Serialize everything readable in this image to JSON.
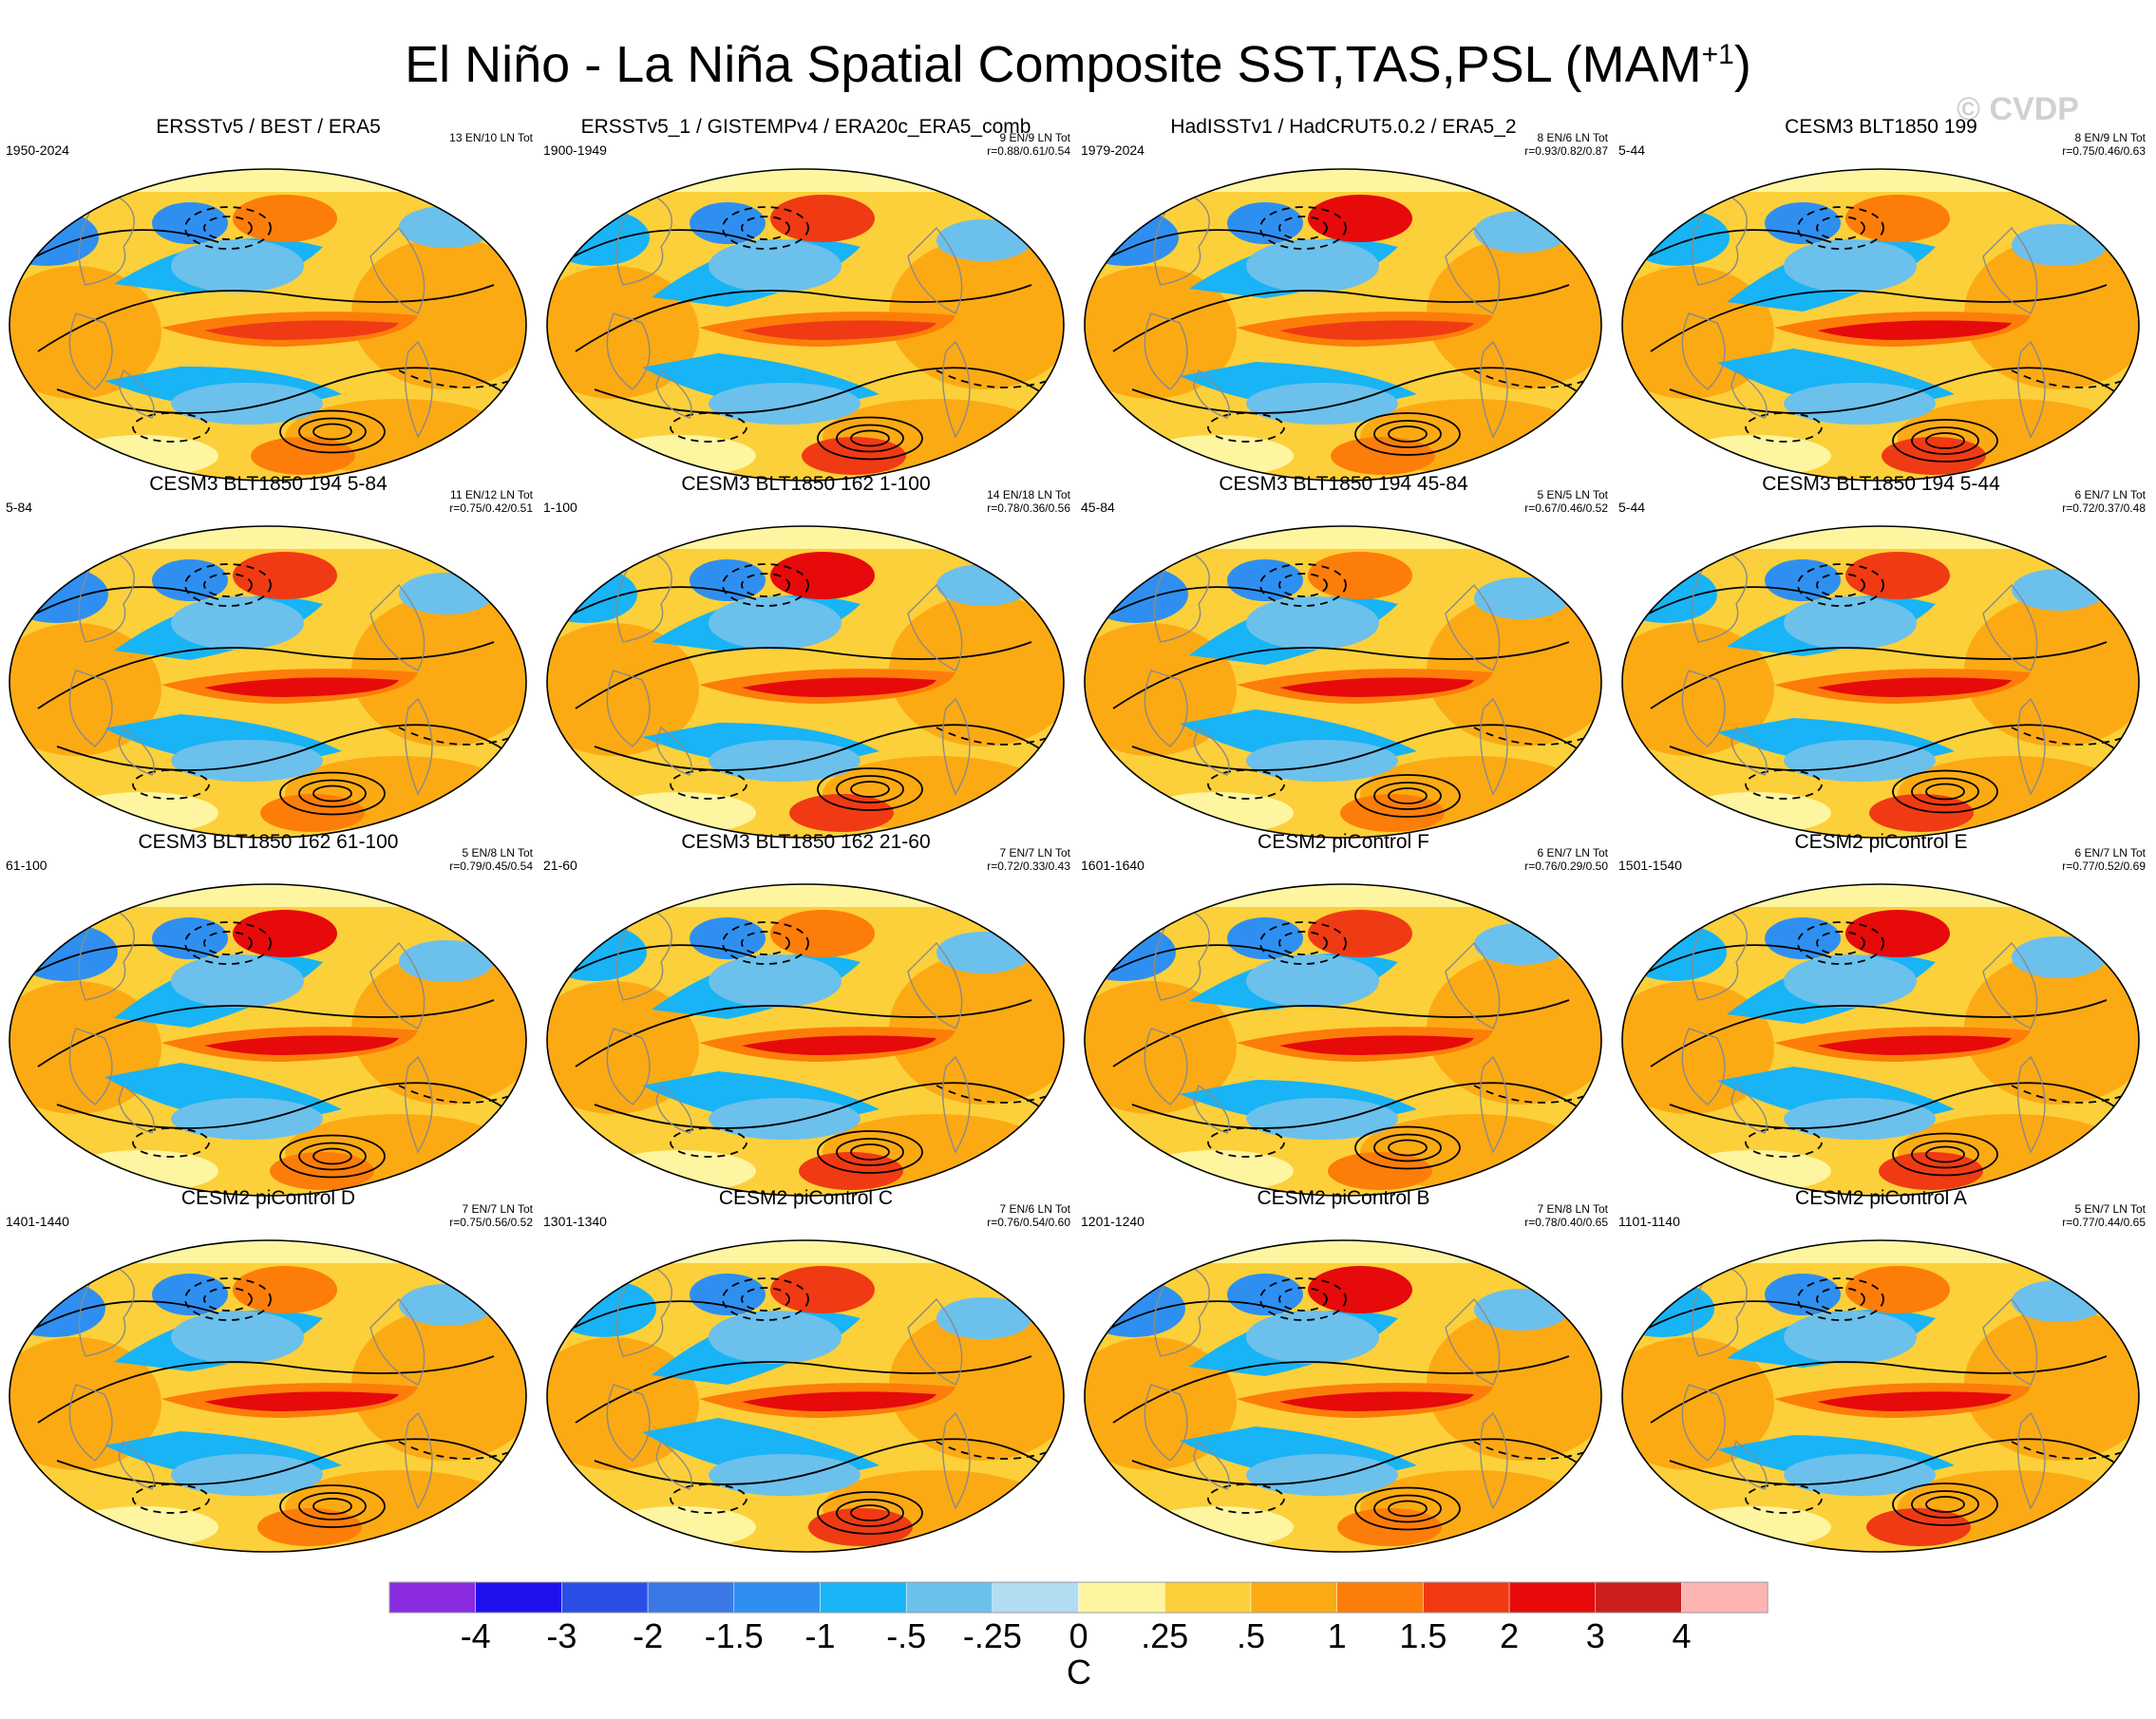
{
  "figure": {
    "title_main": "El Niño - La Niña Spatial Composite SST,TAS,PSL (MAM",
    "title_sup": "+1",
    "title_end": ")",
    "watermark": "© CVDP",
    "colors": {
      "land_ocean_warm": "#fcd74a",
      "polar": "#fdf5a0"
    }
  },
  "panels": [
    {
      "title": "ERSSTv5 / BEST / ERA5",
      "years": "1950-2024",
      "stats_line1": "13 EN/10 LN Tot",
      "stats_line2": ""
    },
    {
      "title": "ERSSTv5_1 / GISTEMPv4 / ERA20c_ERA5_comb",
      "years": "1900-1949",
      "stats_line1": "9 EN/9 LN Tot",
      "stats_line2": "r=0.88/0.61/0.54"
    },
    {
      "title": "HadISSTv1 / HadCRUT5.0.2 / ERA5_2",
      "years": "1979-2024",
      "stats_line1": "8 EN/6 LN Tot",
      "stats_line2": "r=0.93/0.82/0.87"
    },
    {
      "title": "CESM3 BLT1850 199",
      "years": "5-44",
      "stats_line1": "8 EN/9 LN Tot",
      "stats_line2": "r=0.75/0.46/0.63"
    },
    {
      "title": "CESM3 BLT1850 194 5-84",
      "years": "5-84",
      "stats_line1": "11 EN/12 LN Tot",
      "stats_line2": "r=0.75/0.42/0.51"
    },
    {
      "title": "CESM3 BLT1850 162 1-100",
      "years": "1-100",
      "stats_line1": "14 EN/18 LN Tot",
      "stats_line2": "r=0.78/0.36/0.56"
    },
    {
      "title": "CESM3 BLT1850 194 45-84",
      "years": "45-84",
      "stats_line1": "5 EN/5 LN Tot",
      "stats_line2": "r=0.67/0.46/0.52"
    },
    {
      "title": "CESM3 BLT1850 194 5-44",
      "years": "5-44",
      "stats_line1": "6 EN/7 LN Tot",
      "stats_line2": "r=0.72/0.37/0.48"
    },
    {
      "title": "CESM3 BLT1850 162 61-100",
      "years": "61-100",
      "stats_line1": "5 EN/8 LN Tot",
      "stats_line2": "r=0.79/0.45/0.54"
    },
    {
      "title": "CESM3 BLT1850 162 21-60",
      "years": "21-60",
      "stats_line1": "7 EN/7 LN Tot",
      "stats_line2": "r=0.72/0.33/0.43"
    },
    {
      "title": "CESM2 piControl F",
      "years": "1601-1640",
      "stats_line1": "6 EN/7 LN Tot",
      "stats_line2": "r=0.76/0.29/0.50"
    },
    {
      "title": "CESM2 piControl E",
      "years": "1501-1540",
      "stats_line1": "6 EN/7 LN Tot",
      "stats_line2": "r=0.77/0.52/0.69"
    },
    {
      "title": "CESM2 piControl D",
      "years": "1401-1440",
      "stats_line1": "7 EN/7 LN Tot",
      "stats_line2": "r=0.75/0.56/0.52"
    },
    {
      "title": "CESM2 piControl C",
      "years": "1301-1340",
      "stats_line1": "7 EN/6 LN Tot",
      "stats_line2": "r=0.76/0.54/0.60"
    },
    {
      "title": "CESM2 piControl B",
      "years": "1201-1240",
      "stats_line1": "7 EN/8 LN Tot",
      "stats_line2": "r=0.78/0.40/0.65"
    },
    {
      "title": "CESM2 piControl A",
      "years": "1101-1140",
      "stats_line1": "5 EN/7 LN Tot",
      "stats_line2": "r=0.77/0.44/0.65"
    }
  ],
  "colorbar": {
    "labels": [
      "-4",
      "-3",
      "-2",
      "-1.5",
      "-1",
      "-.5",
      "-.25",
      "0",
      ".25",
      ".5",
      "1",
      "1.5",
      "2",
      "3",
      "4"
    ],
    "colors": [
      "#8a2be2",
      "#1f10f0",
      "#2a4de6",
      "#3a78e6",
      "#2f8ff0",
      "#18b4f5",
      "#6cc0ec",
      "#b2dcf2",
      "#fdf5a0",
      "#fcd03a",
      "#fcaa14",
      "#fd7d0a",
      "#f03a14",
      "#e60a0a",
      "#cc1e1e",
      "#ffb4b4"
    ],
    "unit": "C"
  }
}
